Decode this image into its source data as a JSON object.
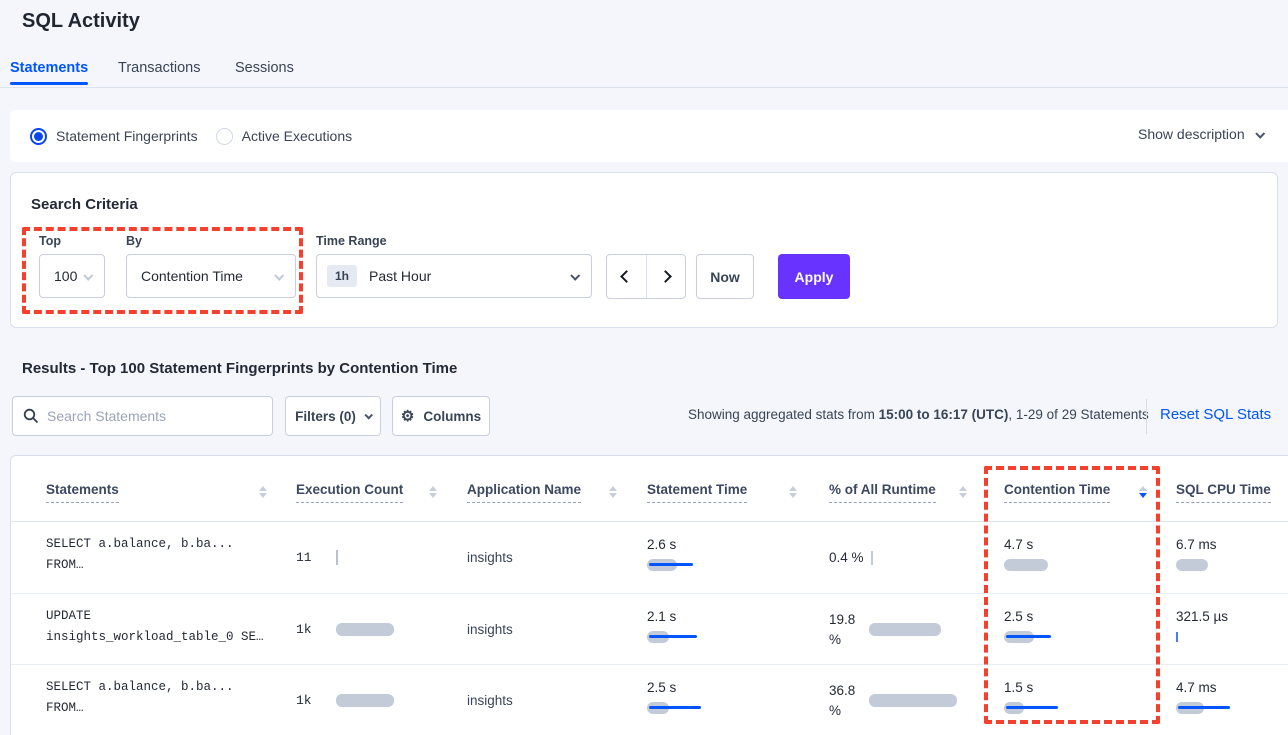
{
  "header": {
    "title": "SQL Activity"
  },
  "tabs": [
    {
      "label": "Statements"
    },
    {
      "label": "Transactions"
    },
    {
      "label": "Sessions"
    }
  ],
  "view_toggle": {
    "fingerprints": "Statement Fingerprints",
    "active_executions": "Active Executions",
    "show_description": "Show description"
  },
  "search_criteria": {
    "heading": "Search Criteria",
    "top_label": "Top",
    "top_value": "100",
    "by_label": "By",
    "by_value": "Contention Time",
    "time_range_label": "Time Range",
    "time_range_badge": "1h",
    "time_range_value": "Past Hour",
    "now_label": "Now",
    "apply_label": "Apply"
  },
  "results": {
    "heading": "Results - Top 100 Statement Fingerprints by Contention Time",
    "search_placeholder": "Search Statements",
    "filters_label": "Filters (0)",
    "columns_label": "Columns",
    "stats_prefix": "Showing aggregated stats from ",
    "stats_bold": "15:00 to 16:17 (UTC)",
    "stats_suffix": ", 1-29 of 29 Statements",
    "reset_label": "Reset SQL Stats"
  },
  "table": {
    "headers": [
      "Statements",
      "Execution Count",
      "Application Name",
      "Statement Time",
      "% of All Runtime",
      "Contention Time",
      "SQL CPU Time"
    ],
    "sort": {
      "column": "Contention Time",
      "direction": "desc"
    },
    "rows": [
      {
        "statement_line1": "SELECT a.balance, b.ba...",
        "statement_line2": "FROM…",
        "execution_count": "11",
        "exec_bar": 2,
        "application": "insights",
        "statement_time": "2.6 s",
        "statement_time_bar": 30,
        "statement_time_line": 44,
        "pct_runtime": "0.4 %",
        "pct_bar": 0,
        "pct_tick": 2,
        "contention_time": "4.7 s",
        "contention_bar": 44,
        "contention_line": 0,
        "sql_cpu_time": "6.7 ms",
        "cpu_bar": 32,
        "cpu_line": 0,
        "cpu_tick": 0
      },
      {
        "statement_line1": "UPDATE",
        "statement_line2": "insights_workload_table_0 SE…",
        "execution_count": "1k",
        "exec_bar": 58,
        "application": "insights",
        "statement_time": "2.1 s",
        "statement_time_bar": 22,
        "statement_time_line": 48,
        "pct_runtime": "19.8 %",
        "pct_bar": 72,
        "pct_tick": 0,
        "contention_time": "2.5 s",
        "contention_bar": 30,
        "contention_line": 45,
        "sql_cpu_time": "321.5 µs",
        "cpu_bar": 0,
        "cpu_line": 0,
        "cpu_tick": 2
      },
      {
        "statement_line1": "SELECT a.balance, b.ba...",
        "statement_line2": "FROM…",
        "execution_count": "1k",
        "exec_bar": 58,
        "application": "insights",
        "statement_time": "2.5 s",
        "statement_time_bar": 22,
        "statement_time_line": 52,
        "pct_runtime": "36.8 %",
        "pct_bar": 88,
        "pct_tick": 0,
        "contention_time": "1.5 s",
        "contention_bar": 20,
        "contention_line": 52,
        "sql_cpu_time": "4.7 ms",
        "cpu_bar": 28,
        "cpu_line": 52,
        "cpu_tick": 0
      }
    ]
  },
  "annotations": {
    "color": "#f4402c",
    "regions": [
      "top-by-selectors",
      "contention-time-column"
    ]
  }
}
